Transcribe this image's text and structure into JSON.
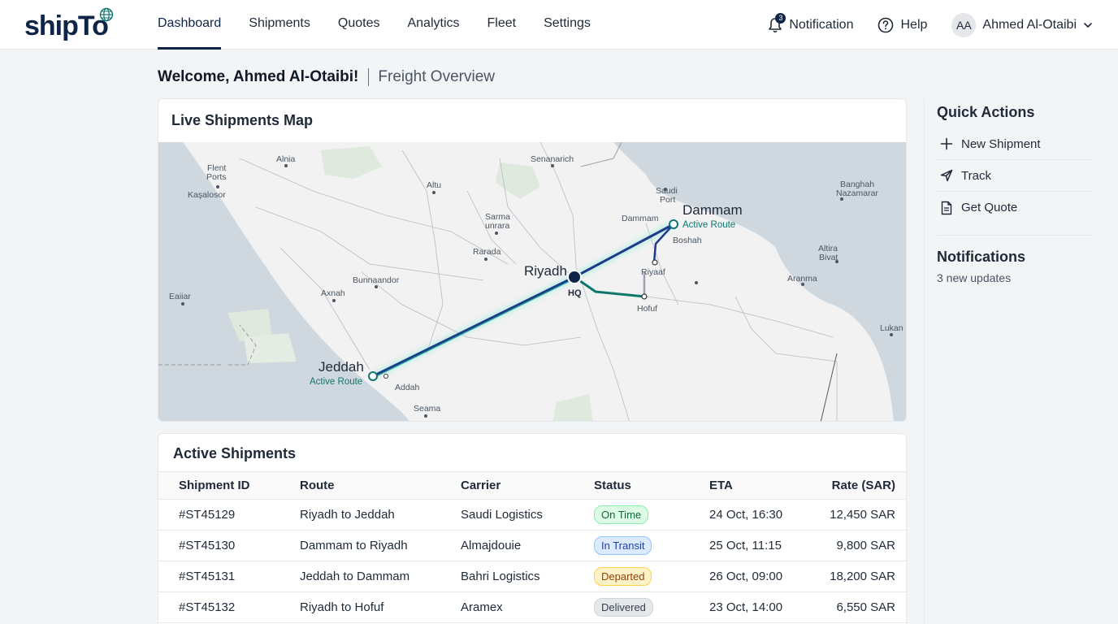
{
  "app": {
    "logo": "shipTo"
  },
  "nav": {
    "items": [
      {
        "label": "Dashboard",
        "active": true
      },
      {
        "label": "Shipments",
        "active": false
      },
      {
        "label": "Quotes",
        "active": false
      },
      {
        "label": "Analytics",
        "active": false
      },
      {
        "label": "Fleet",
        "active": false
      },
      {
        "label": "Settings",
        "active": false
      }
    ]
  },
  "header": {
    "notification_label": "Notification",
    "notification_count": "3",
    "help_label": "Help",
    "user_initials": "AA",
    "user_name": "Ahmed Al-Otaibi"
  },
  "welcome": {
    "greeting": "Welcome, Ahmed Al-Otaibi!",
    "subtitle": "Freight Overview"
  },
  "map": {
    "title": "Live Shipments Map",
    "labels": {
      "riyadh": "Riyadh",
      "hq": "HQ",
      "dammam_big": "Dammam",
      "dammam_route": "Active Route",
      "jeddah": "Jeddah",
      "jeddah_route": "Active Route",
      "hofuf": "Hofuf",
      "riyaaf": "Riyaaf",
      "boshah": "Boshah",
      "dammam_small": "Dammam",
      "saudi_port_1": "Saudi",
      "saudi_port_2": "Port",
      "senanarich": "Senanarich",
      "alnia": "Alnia",
      "flent_1": "Flent",
      "flent_2": "Ports",
      "kasalosor": "Kaşalosor",
      "altu": "Altu",
      "sarma_1": "Sarma",
      "sarma_2": "unrara",
      "rarada": "Rarada",
      "bunnaandor": "Bunnaandor",
      "axnah": "Axnah",
      "eaiiar": "Eaiiar",
      "addah": "Addah",
      "seama": "Seama",
      "banghah_1": "Banghah",
      "banghah_2": "Nazamarar",
      "altira_1": "Altira",
      "altira_2": "Bivat",
      "aranma": "Aranma",
      "lukan": "Lukan"
    }
  },
  "shipments": {
    "title": "Active Shipments",
    "columns": [
      "Shipment ID",
      "Route",
      "Carrier",
      "Status",
      "ETA",
      "Rate (SAR)"
    ],
    "rows": [
      {
        "id": "#ST45129",
        "route": "Riyadh to Jeddah",
        "carrier": "Saudi Logistics",
        "status": "On Time",
        "eta": "24 Oct, 16:30",
        "rate": "12,450 SAR"
      },
      {
        "id": "#ST45130",
        "route": "Dammam to Riyadh",
        "carrier": "Almajdouie",
        "status": "In Transit",
        "eta": "25 Oct, 11:15",
        "rate": "9,800 SAR"
      },
      {
        "id": "#ST45131",
        "route": "Jeddah to Dammam",
        "carrier": "Bahri Logistics",
        "status": "Departed",
        "eta": "26 Oct, 09:00",
        "rate": "18,200 SAR"
      },
      {
        "id": "#ST45132",
        "route": "Riyadh to Hofuf",
        "carrier": "Aramex",
        "status": "Delivered",
        "eta": "23 Oct, 14:00",
        "rate": "6,550 SAR"
      }
    ]
  },
  "quick_actions": {
    "title": "Quick Actions",
    "items": [
      {
        "label": "New Shipment",
        "icon": "plus-icon"
      },
      {
        "label": "Track",
        "icon": "send-icon"
      },
      {
        "label": "Get Quote",
        "icon": "document-icon"
      }
    ]
  },
  "notifications": {
    "title": "Notifications",
    "summary": "3 new updates"
  }
}
